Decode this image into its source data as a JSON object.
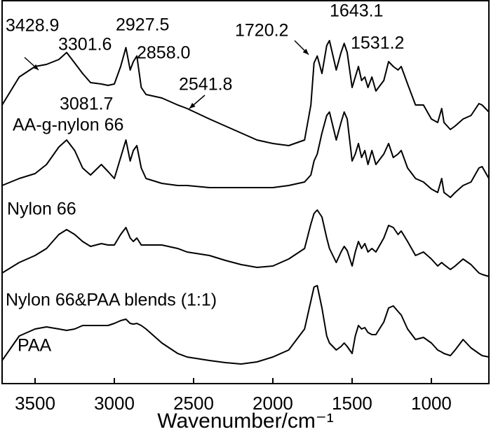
{
  "chart_data": {
    "type": "line",
    "xlabel": "Wavenumber/cm⁻¹",
    "xlim": [
      3708,
      637
    ],
    "xticks": [
      3500,
      3000,
      2500,
      2000,
      1500,
      1000
    ],
    "ylim": [
      548,
      0
    ],
    "x": [
      3708,
      3600,
      3500,
      3428,
      3350,
      3301,
      3250,
      3200,
      3150,
      3082,
      3040,
      3000,
      2960,
      2927,
      2900,
      2880,
      2858,
      2830,
      2800,
      2700,
      2600,
      2541,
      2400,
      2300,
      2200,
      2100,
      2000,
      1900,
      1800,
      1760,
      1740,
      1720,
      1690,
      1660,
      1643,
      1600,
      1570,
      1550,
      1531,
      1500,
      1480,
      1460,
      1440,
      1420,
      1400,
      1375,
      1350,
      1300,
      1270,
      1240,
      1210,
      1190,
      1150,
      1100,
      1050,
      1000,
      960,
      935,
      920,
      880,
      850,
      800,
      750,
      700,
      680,
      637
    ],
    "series": [
      {
        "name": "AA-g-nylon 66",
        "color": "#000000",
        "values": [
          150,
          110,
          95,
          92,
          85,
          75,
          90,
          105,
          118,
          120,
          122,
          120,
          95,
          68,
          100,
          88,
          80,
          125,
          135,
          140,
          150,
          155,
          170,
          180,
          190,
          200,
          205,
          208,
          200,
          150,
          90,
          80,
          105,
          65,
          58,
          100,
          75,
          62,
          75,
          125,
          110,
          95,
          115,
          110,
          125,
          110,
          130,
          115,
          88,
          95,
          100,
          95,
          120,
          150,
          150,
          170,
          175,
          155,
          175,
          185,
          180,
          170,
          165,
          148,
          150,
          160
        ]
      },
      {
        "name": "Nylon 66",
        "color": "#000000",
        "values": [
          265,
          255,
          248,
          235,
          210,
          200,
          215,
          240,
          250,
          235,
          245,
          255,
          225,
          200,
          230,
          215,
          208,
          240,
          255,
          262,
          265,
          265,
          268,
          268,
          268,
          268,
          268,
          265,
          260,
          250,
          230,
          220,
          190,
          165,
          160,
          200,
          175,
          160,
          170,
          230,
          220,
          205,
          225,
          215,
          235,
          215,
          235,
          220,
          205,
          225,
          220,
          215,
          240,
          255,
          260,
          270,
          275,
          255,
          275,
          282,
          275,
          265,
          260,
          240,
          238,
          255
        ]
      },
      {
        "name": "Nylon 66&PAA blends (1:1)",
        "color": "#000000",
        "values": [
          390,
          375,
          365,
          355,
          335,
          328,
          335,
          345,
          352,
          348,
          350,
          350,
          335,
          325,
          340,
          345,
          340,
          350,
          350,
          350,
          355,
          360,
          365,
          372,
          378,
          382,
          380,
          370,
          355,
          320,
          305,
          300,
          310,
          340,
          355,
          375,
          360,
          352,
          358,
          380,
          360,
          345,
          355,
          348,
          360,
          355,
          360,
          340,
          322,
          325,
          335,
          330,
          345,
          365,
          360,
          370,
          380,
          375,
          378,
          385,
          380,
          370,
          378,
          390,
          392,
          395
        ]
      },
      {
        "name": "PAA",
        "color": "#000000",
        "values": [
          515,
          480,
          470,
          467,
          470,
          472,
          470,
          465,
          465,
          465,
          465,
          462,
          458,
          456,
          462,
          463,
          462,
          465,
          470,
          490,
          505,
          510,
          515,
          518,
          520,
          517,
          510,
          500,
          470,
          430,
          410,
          408,
          440,
          480,
          490,
          500,
          495,
          490,
          495,
          505,
          480,
          465,
          470,
          468,
          475,
          478,
          478,
          460,
          440,
          437,
          445,
          450,
          470,
          485,
          482,
          490,
          500,
          503,
          505,
          508,
          500,
          485,
          497,
          505,
          508,
          510
        ]
      }
    ],
    "annotations": [
      "3428.9",
      "3301.6",
      "2927.5",
      "2858.0",
      "3081.7",
      "2541.8",
      "1720.2",
      "1643.1",
      "1531.2"
    ]
  }
}
